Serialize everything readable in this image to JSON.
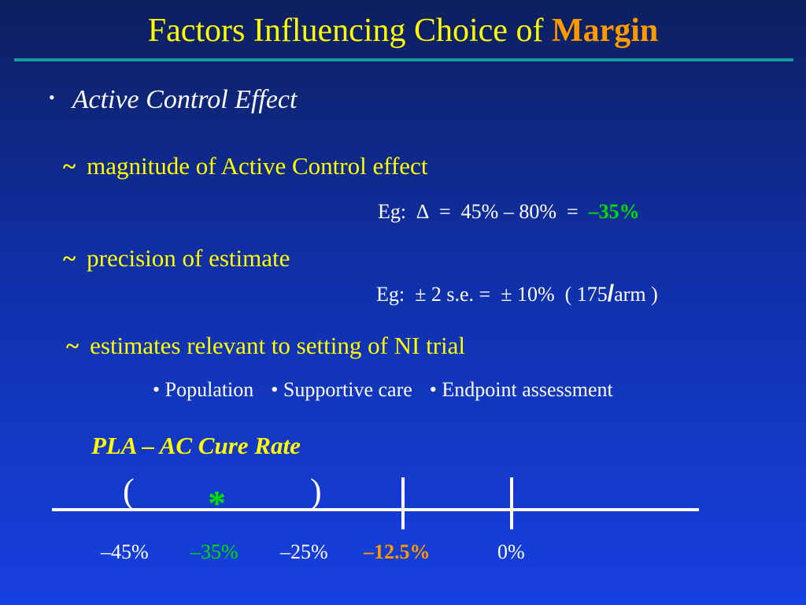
{
  "title": {
    "main": "Factors Influencing Choice of",
    "accent": "Margin"
  },
  "bullet": {
    "marker": "•",
    "text": "Active Control Effect"
  },
  "subpoints": [
    {
      "marker": "~",
      "text": "magnitude of Active Control effect"
    },
    {
      "marker": "~",
      "text": "precision of estimate"
    },
    {
      "marker": "~",
      "text": "estimates relevant to setting of NI trial"
    }
  ],
  "examples": {
    "first": {
      "prefix": "Eg:  ∆  =  45% – 80%  =  ",
      "result": "–35%"
    },
    "second": {
      "prefix": "Eg:  ± 2 s.e. =  ± 10%  ( 175",
      "slash": "/",
      "suffix": "arm )"
    }
  },
  "setting_items": [
    "• Population",
    "• Supportive care",
    "• Endpoint assessment"
  ],
  "scale": {
    "label": "PLA – AC  Cure Rate",
    "open_paren": "(",
    "close_paren": ")",
    "star": "*",
    "labels": [
      "–45%",
      "–35%",
      "–25%",
      "–12.5%",
      "0%"
    ],
    "colors": {
      "normal": "#ffffff",
      "estimate": "#00e000",
      "margin": "#ff9900"
    }
  }
}
